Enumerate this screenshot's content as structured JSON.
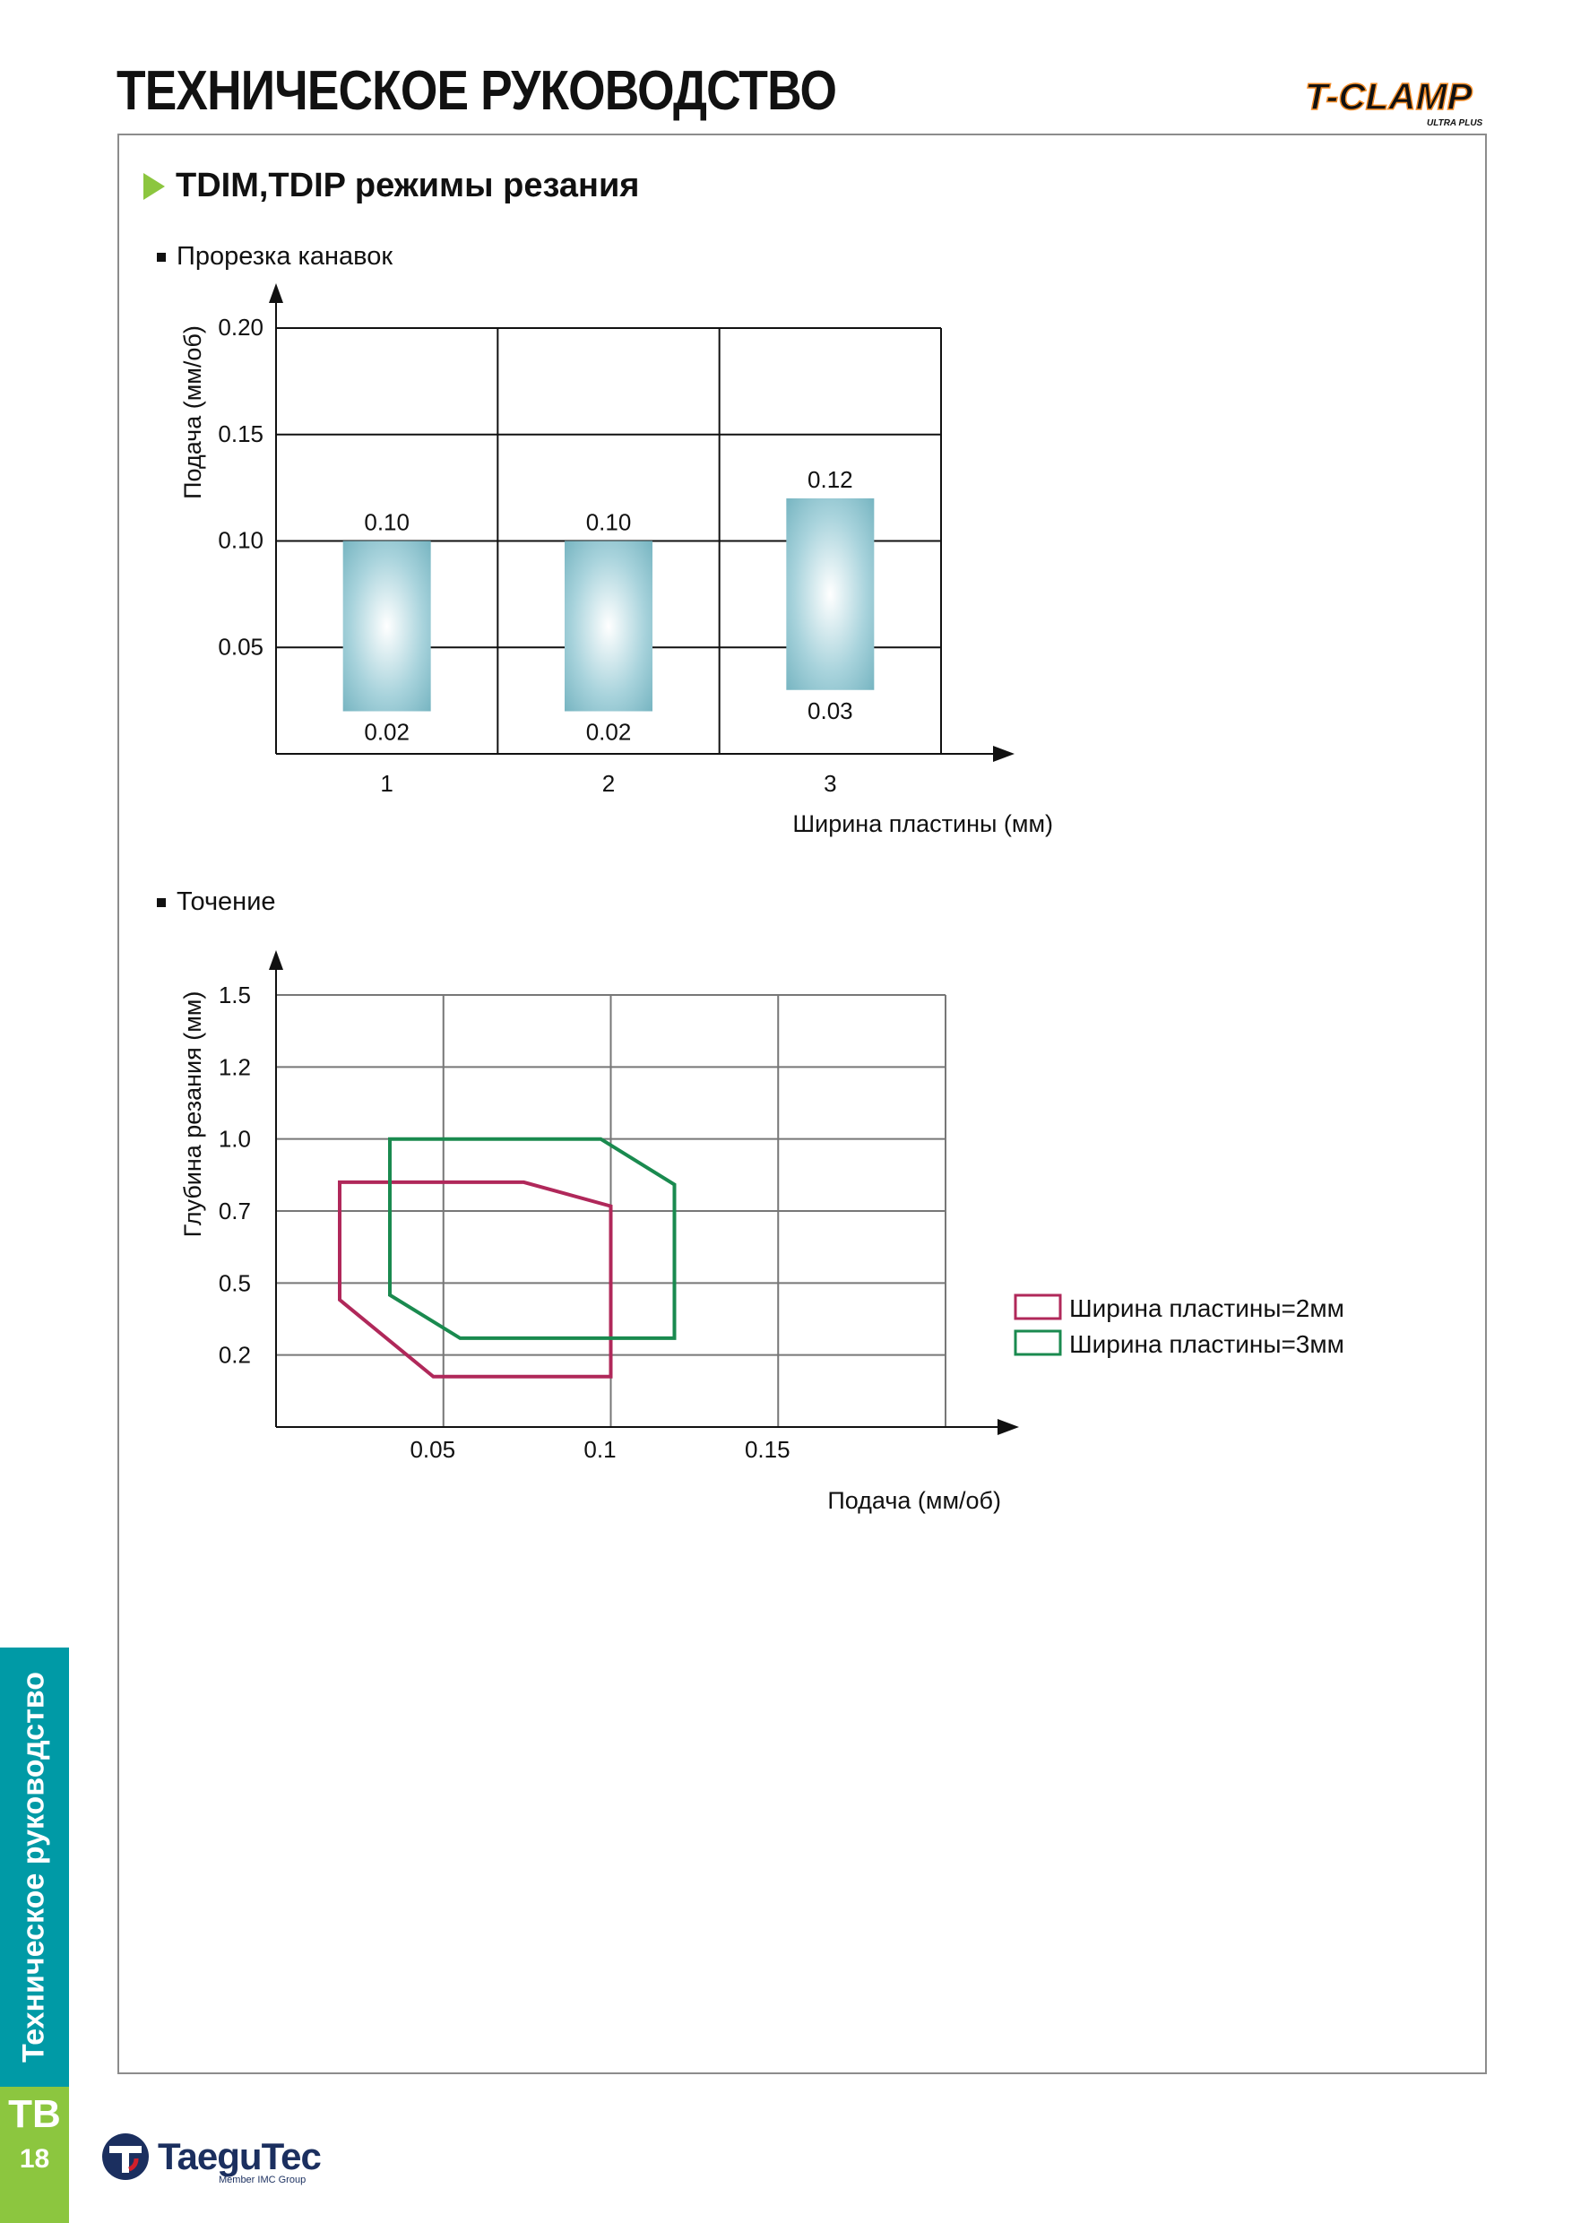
{
  "header": {
    "title": "ТЕХНИЧЕСКОЕ РУКОВОДСТВО",
    "brand": "T-CLAMP",
    "brand_sub": "ULTRA PLUS"
  },
  "section": {
    "heading": "TDIM,TDIP режимы резания"
  },
  "charts": {
    "grooving_heading": "Прорезка канавок",
    "turning_heading": "Точение"
  },
  "chart_data": [
    {
      "type": "bar",
      "subtype": "floating-range",
      "title": "Прорезка канавок",
      "xlabel": "Ширина пластины (мм)",
      "ylabel": "Подача (мм/об)",
      "categories": [
        "1",
        "2",
        "3"
      ],
      "ranges": [
        {
          "category": "1",
          "min": 0.02,
          "max": 0.1,
          "min_label": "0.02",
          "max_label": "0.10"
        },
        {
          "category": "2",
          "min": 0.02,
          "max": 0.1,
          "min_label": "0.02",
          "max_label": "0.10"
        },
        {
          "category": "3",
          "min": 0.03,
          "max": 0.12,
          "min_label": "0.03",
          "max_label": "0.12"
        }
      ],
      "ylim": [
        0,
        0.2
      ],
      "yticks": [
        {
          "value": 0.05,
          "label": "0.05"
        },
        {
          "value": 0.1,
          "label": "0.10"
        },
        {
          "value": 0.15,
          "label": "0.15"
        },
        {
          "value": 0.2,
          "label": "0.20"
        }
      ],
      "grid": true,
      "bar_color": "#6fb0bd"
    },
    {
      "type": "area",
      "subtype": "polygon-regions",
      "title": "Точение",
      "xlabel": "Подача (мм/об)",
      "ylabel": "Глубина резания (мм)",
      "xlim": [
        0,
        0.2
      ],
      "xticks": [
        {
          "value": 0.05,
          "label": "0.05"
        },
        {
          "value": 0.1,
          "label": "0.1"
        },
        {
          "value": 0.15,
          "label": "0.15"
        }
      ],
      "yticks": [
        {
          "value": 0.2,
          "label": "0.2"
        },
        {
          "value": 0.5,
          "label": "0.5"
        },
        {
          "value": 0.7,
          "label": "0.7"
        },
        {
          "value": 1.0,
          "label": "1.0"
        },
        {
          "value": 1.2,
          "label": "1.2"
        },
        {
          "value": 1.5,
          "label": "1.5"
        }
      ],
      "grid": true,
      "legend_position": "right",
      "series": [
        {
          "name": "Ширина пластины=2мм",
          "color": "#b0285a",
          "points": [
            [
              0.019,
              0.82
            ],
            [
              0.074,
              0.82
            ],
            [
              0.1,
              0.72
            ],
            [
              0.1,
              0.14
            ],
            [
              0.047,
              0.14
            ],
            [
              0.019,
              0.43
            ]
          ]
        },
        {
          "name": "Ширина пластины=3мм",
          "color": "#1a8a4f",
          "points": [
            [
              0.034,
              1.0
            ],
            [
              0.097,
              1.0
            ],
            [
              0.119,
              0.81
            ],
            [
              0.119,
              0.27
            ],
            [
              0.055,
              0.27
            ],
            [
              0.034,
              0.45
            ]
          ]
        }
      ]
    }
  ],
  "sidebar": {
    "label": "Техническое руководство",
    "code": "TB",
    "page_number": "18"
  },
  "footer": {
    "company": "TaeguTec",
    "member": "Member IMC Group"
  }
}
